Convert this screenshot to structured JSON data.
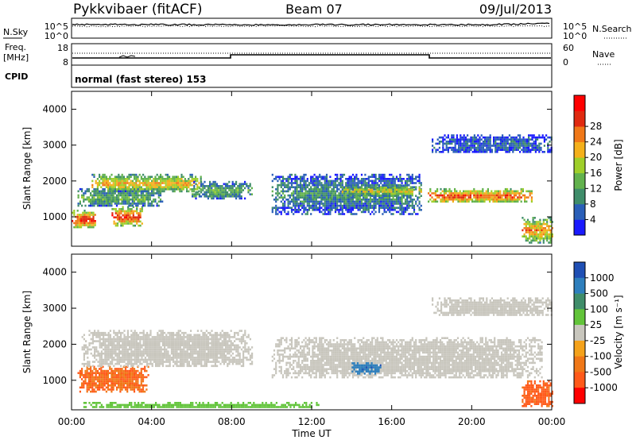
{
  "header": {
    "station": "Pykkvibaer (fitACF)",
    "beam": "Beam 07",
    "date": "09/Jul/2013"
  },
  "noise_panel": {
    "left_label": "N.Sky",
    "right_label": "N.Search",
    "left_ticks": [
      "10^5",
      "10^0"
    ],
    "right_ticks": [
      "10^5",
      "10^0"
    ]
  },
  "freq_panel": {
    "left_label_line1": "Freq.",
    "left_label_line2": "[MHz]",
    "right_label": "Nave",
    "left_ticks": [
      "18",
      "8"
    ],
    "right_ticks": [
      "60",
      "0"
    ]
  },
  "cpid": {
    "label": "CPID",
    "mode": "normal (fast stereo) 153"
  },
  "chart_data": [
    {
      "type": "heatmap",
      "title": "",
      "xlabel": "",
      "ylabel": "Slant Range [km]",
      "xlim": [
        "00:00",
        "00:00"
      ],
      "ylim": [
        180,
        4500
      ],
      "yticks": [
        "1000",
        "2000",
        "3000",
        "4000"
      ],
      "colorbar": {
        "label": "Power [dB]",
        "ticks": [
          "4",
          "8",
          "12",
          "16",
          "20",
          "24",
          "28"
        ],
        "colors": [
          "#1a1aff",
          "#2a5fb8",
          "#3f8d6a",
          "#62b24d",
          "#9fcf2a",
          "#f4b01b",
          "#f07818",
          "#e02a10",
          "#ff0000"
        ]
      },
      "regions": [
        {
          "t0": 0.0,
          "t1": 1.2,
          "r0": 700,
          "r1": 1200,
          "value": 28
        },
        {
          "t0": 2.0,
          "t1": 3.5,
          "r0": 750,
          "r1": 1300,
          "value": 27
        },
        {
          "t0": 0.3,
          "t1": 4.5,
          "r0": 1300,
          "r1": 1800,
          "value": 12
        },
        {
          "t0": 1.0,
          "t1": 6.5,
          "r0": 1700,
          "r1": 2200,
          "value": 20
        },
        {
          "t0": 6.0,
          "t1": 9.0,
          "r0": 1500,
          "r1": 2000,
          "value": 11
        },
        {
          "t0": 10.0,
          "t1": 17.5,
          "r0": 1100,
          "r1": 2200,
          "value": 9
        },
        {
          "t0": 13.5,
          "t1": 17.5,
          "r0": 1600,
          "r1": 1900,
          "value": 18
        },
        {
          "t0": 17.8,
          "t1": 23.0,
          "r0": 1400,
          "r1": 1800,
          "value": 26
        },
        {
          "t0": 18.0,
          "t1": 24.0,
          "r0": 2800,
          "r1": 3300,
          "value": 6
        },
        {
          "t0": 22.5,
          "t1": 24.0,
          "r0": 300,
          "r1": 1000,
          "value": 22
        }
      ]
    },
    {
      "type": "heatmap",
      "title": "",
      "xlabel": "Time UT",
      "ylabel": "Slant Range [km]",
      "xlim": [
        "00:00",
        "00:00"
      ],
      "ylim": [
        180,
        4500
      ],
      "xticks": [
        "00:00",
        "04:00",
        "08:00",
        "12:00",
        "16:00",
        "20:00",
        "00:00"
      ],
      "yticks": [
        "1000",
        "2000",
        "3000",
        "4000"
      ],
      "colorbar": {
        "label": "Velocity [m s⁻¹]",
        "ticks": [
          "1000",
          "500",
          "100",
          "25",
          "-25",
          "-100",
          "-500",
          "-1000"
        ],
        "colors": [
          "#1f4fb4",
          "#2e7fbd",
          "#3f8d6a",
          "#62c43a",
          "#c8c6bd",
          "#f4a21b",
          "#f07818",
          "#ff5a1a",
          "#ff0000"
        ]
      },
      "regions": [
        {
          "t0": 0.3,
          "t1": 3.8,
          "r0": 700,
          "r1": 1400,
          "value": -500
        },
        {
          "t0": 0.5,
          "t1": 9.0,
          "r0": 1400,
          "r1": 2400,
          "value": 0
        },
        {
          "t0": 10.0,
          "t1": 23.5,
          "r0": 1100,
          "r1": 2200,
          "value": 0
        },
        {
          "t0": 14.0,
          "t1": 15.5,
          "r0": 1200,
          "r1": 1500,
          "value": 800
        },
        {
          "t0": 18.0,
          "t1": 24.0,
          "r0": 2800,
          "r1": 3300,
          "value": 0
        },
        {
          "t0": 22.5,
          "t1": 24.0,
          "r0": 300,
          "r1": 1000,
          "value": -700
        },
        {
          "t0": 0.5,
          "t1": 12.5,
          "r0": 250,
          "r1": 400,
          "value": 60
        }
      ]
    }
  ]
}
